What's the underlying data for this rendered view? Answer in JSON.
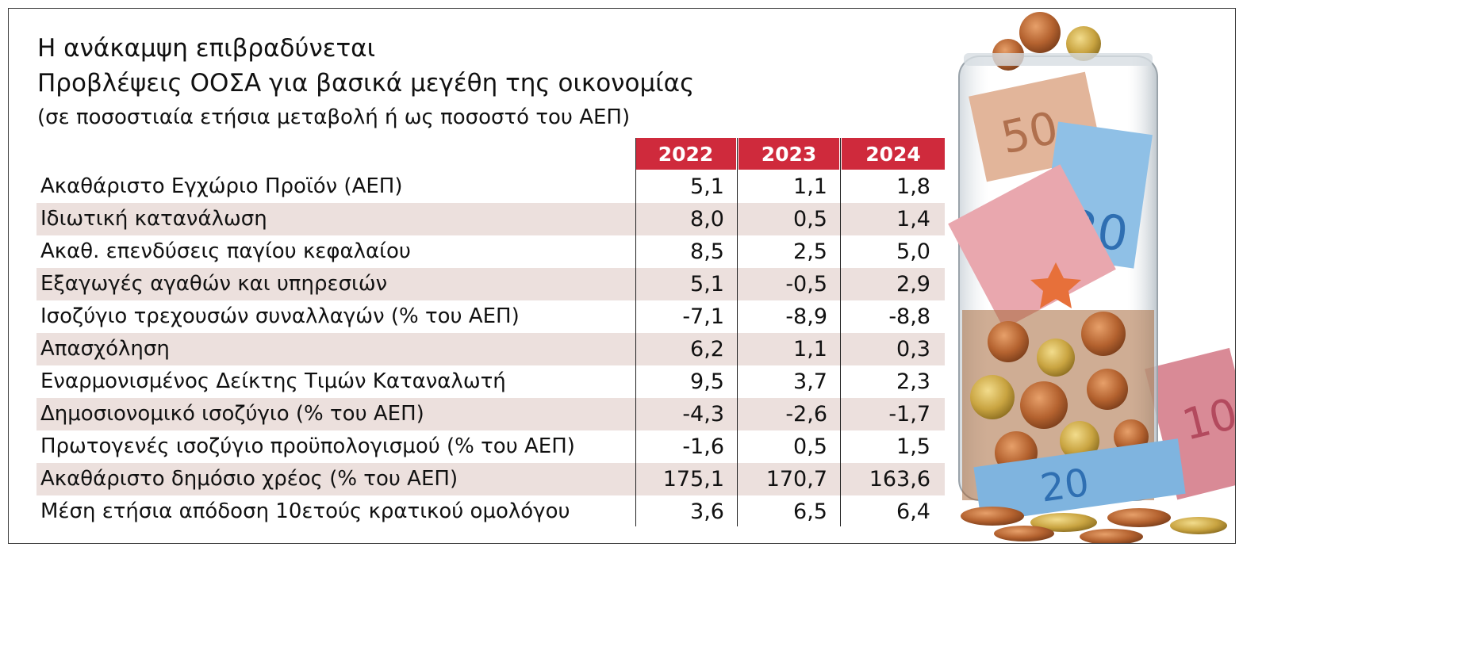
{
  "title": "Η ανάκαμψη επιβραδύνεται",
  "subtitle": "Προβλέψεις ΟΟΣΑ για βασικά μεγέθη της οικονομίας",
  "unit_note": "(σε ποσοστιαία ετήσια μεταβολή ή ως ποσοστό του ΑΕΠ)",
  "colors": {
    "header_bg": "#cf2a3c",
    "row_shade": "#ece0dd",
    "text": "#111111"
  },
  "chart_data": {
    "type": "table",
    "title": "Η ανάκαμψη επιβραδύνεται",
    "subtitle": "Προβλέψεις ΟΟΣΑ για βασικά μεγέθη της οικονομίας",
    "columns": [
      "2022",
      "2023",
      "2024"
    ],
    "rows": [
      {
        "label": "Ακαθάριστο Εγχώριο Προϊόν (ΑΕΠ)",
        "values": [
          "5,1",
          "1,1",
          "1,8"
        ]
      },
      {
        "label": "Ιδιωτική κατανάλωση",
        "values": [
          "8,0",
          "0,5",
          "1,4"
        ]
      },
      {
        "label": "Ακαθ. επενδύσεις παγίου κεφαλαίου",
        "values": [
          "8,5",
          "2,5",
          "5,0"
        ]
      },
      {
        "label": "Εξαγωγές αγαθών και υπηρεσιών",
        "values": [
          "5,1",
          "-0,5",
          "2,9"
        ]
      },
      {
        "label": "Ισοζύγιο τρεχουσών συναλλαγών (% του ΑΕΠ)",
        "values": [
          "-7,1",
          "-8,9",
          "-8,8"
        ]
      },
      {
        "label": "Απασχόληση",
        "values": [
          "6,2",
          "1,1",
          "0,3"
        ]
      },
      {
        "label": "Εναρμονισμένος Δείκτης Τιμών Καταναλωτή",
        "values": [
          "9,5",
          "3,7",
          "2,3"
        ]
      },
      {
        "label": "Δημοσιονομικό ισοζύγιο (% του ΑΕΠ)",
        "values": [
          "-4,3",
          "-2,6",
          "-1,7"
        ]
      },
      {
        "label": "Πρωτογενές ισοζύγιο προϋπολογισμού (% του ΑΕΠ)",
        "values": [
          "-1,6",
          "0,5",
          "1,5"
        ]
      },
      {
        "label": "Ακαθάριστο δημόσιο χρέος (% του ΑΕΠ)",
        "values": [
          "175,1",
          "170,7",
          "163,6"
        ]
      },
      {
        "label": "Μέση ετήσια απόδοση 10ετούς κρατικού ομολόγου",
        "values": [
          "3,6",
          "6,5",
          "6,4"
        ]
      }
    ]
  }
}
